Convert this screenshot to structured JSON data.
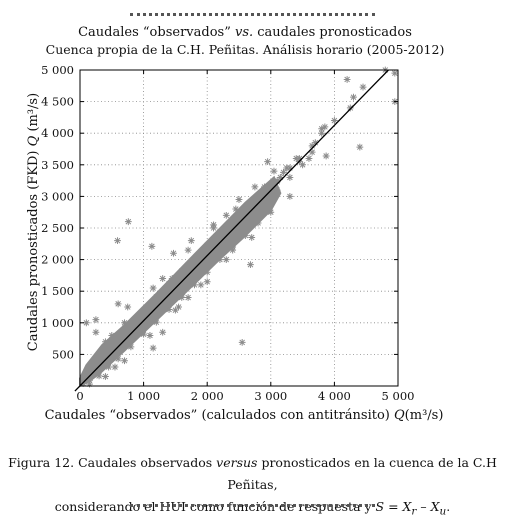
{
  "chart_data": {
    "type": "scatter",
    "title": "Caudales “observados” vs. caudales pronosticados",
    "title_italic_part": "vs.",
    "subtitle": "Cuenca propia de la C.H. Peñitas. Análisis horario (2005-2012)",
    "xlabel": "Caudales “observados” (calculados con antitránsito) Q(m³/s)",
    "ylabel": "Caudales pronosticados (FKD) Q (m³/s)",
    "xlim": [
      0,
      5000
    ],
    "ylim": [
      0,
      5000
    ],
    "x_ticks": [
      0,
      1000,
      2000,
      3000,
      4000,
      5000
    ],
    "x_tick_labels": [
      "0",
      "1 000",
      "2 000",
      "3 000",
      "4 000",
      "5 000"
    ],
    "y_ticks": [
      500,
      1000,
      1500,
      2000,
      2500,
      3000,
      3500,
      4000,
      4500,
      5000
    ],
    "y_tick_labels": [
      "500",
      "1 000",
      "1 500",
      "2 000",
      "2 500",
      "3 000",
      "3 500",
      "4 000",
      "4 500",
      "5 000"
    ],
    "grid": true,
    "marker": "asterisk",
    "marker_color": "#8c8c8c",
    "reference_line": {
      "name": "1:1",
      "x": [
        -80,
        4850
      ],
      "y": [
        -80,
        5000
      ],
      "color": "#000000"
    },
    "series": [
      {
        "points": [
          [
            50,
            40
          ],
          [
            100,
            120
          ],
          [
            150,
            90
          ],
          [
            200,
            210
          ],
          [
            250,
            230
          ],
          [
            300,
            280
          ],
          [
            350,
            330
          ],
          [
            400,
            390
          ],
          [
            450,
            430
          ],
          [
            500,
            510
          ],
          [
            550,
            540
          ],
          [
            600,
            600
          ],
          [
            650,
            660
          ],
          [
            700,
            720
          ],
          [
            750,
            790
          ],
          [
            800,
            840
          ],
          [
            850,
            900
          ],
          [
            900,
            950
          ],
          [
            950,
            1000
          ],
          [
            1000,
            1060
          ],
          [
            1050,
            1110
          ],
          [
            1100,
            1160
          ],
          [
            1150,
            1220
          ],
          [
            1200,
            1270
          ],
          [
            1250,
            1320
          ],
          [
            1300,
            1380
          ],
          [
            1350,
            1420
          ],
          [
            1400,
            1470
          ],
          [
            1450,
            1520
          ],
          [
            1500,
            1580
          ],
          [
            1550,
            1630
          ],
          [
            1600,
            1680
          ],
          [
            1650,
            1740
          ],
          [
            1700,
            1790
          ],
          [
            1750,
            1840
          ],
          [
            1800,
            1900
          ],
          [
            1850,
            1950
          ],
          [
            1900,
            2000
          ],
          [
            1950,
            2060
          ],
          [
            2000,
            2110
          ],
          [
            2050,
            2160
          ],
          [
            2100,
            2200
          ],
          [
            2150,
            2260
          ],
          [
            2200,
            2320
          ],
          [
            2250,
            2370
          ],
          [
            2300,
            2420
          ],
          [
            2350,
            2470
          ],
          [
            2400,
            2520
          ],
          [
            2450,
            2570
          ],
          [
            2500,
            2630
          ],
          [
            2550,
            2680
          ],
          [
            2600,
            2730
          ],
          [
            2650,
            2780
          ],
          [
            2700,
            2840
          ],
          [
            2750,
            2900
          ],
          [
            2800,
            2950
          ],
          [
            2850,
            3000
          ],
          [
            2900,
            3050
          ],
          [
            3000,
            3120
          ],
          [
            3100,
            3230
          ],
          [
            150,
            230
          ],
          [
            300,
            420
          ],
          [
            450,
            600
          ],
          [
            600,
            760
          ],
          [
            800,
            950
          ],
          [
            1000,
            1200
          ],
          [
            1200,
            1410
          ],
          [
            1400,
            1620
          ],
          [
            1600,
            1820
          ],
          [
            1800,
            2020
          ],
          [
            2000,
            2230
          ],
          [
            2200,
            2440
          ],
          [
            2400,
            2620
          ],
          [
            2600,
            2820
          ],
          [
            150,
            30
          ],
          [
            300,
            160
          ],
          [
            450,
            300
          ],
          [
            600,
            430
          ],
          [
            800,
            620
          ],
          [
            1000,
            820
          ],
          [
            1200,
            1010
          ],
          [
            1400,
            1210
          ],
          [
            1600,
            1400
          ],
          [
            1800,
            1600
          ],
          [
            2000,
            1800
          ],
          [
            2200,
            2000
          ],
          [
            2400,
            2200
          ],
          [
            2600,
            2380
          ],
          [
            2800,
            2580
          ],
          [
            400,
            150
          ],
          [
            700,
            400
          ],
          [
            1100,
            800
          ],
          [
            1500,
            1200
          ],
          [
            1900,
            1600
          ],
          [
            2300,
            2000
          ],
          [
            2700,
            2350
          ],
          [
            400,
            700
          ],
          [
            700,
            1000
          ],
          [
            1300,
            1700
          ],
          [
            1700,
            2150
          ],
          [
            2100,
            2500
          ],
          [
            2500,
            2950
          ],
          [
            100,
            1000
          ],
          [
            250,
            850
          ],
          [
            550,
            300
          ],
          [
            1150,
            600
          ],
          [
            1300,
            850
          ],
          [
            1700,
            1400
          ],
          [
            2000,
            1650
          ],
          [
            750,
            1250
          ],
          [
            1150,
            1550
          ],
          [
            1450,
            1700
          ],
          [
            1750,
            2300
          ],
          [
            2100,
            2550
          ],
          [
            2300,
            2700
          ],
          [
            2450,
            2800
          ],
          [
            1550,
            1250
          ],
          [
            3100,
            3100
          ],
          [
            3200,
            3380
          ],
          [
            3300,
            3450
          ],
          [
            3450,
            3550
          ],
          [
            3650,
            3800
          ],
          [
            3800,
            4000
          ],
          [
            3850,
            4100
          ],
          [
            3000,
            2950
          ],
          [
            3450,
            3600
          ],
          [
            3500,
            3500
          ],
          [
            3650,
            3700
          ],
          [
            3700,
            3850
          ],
          [
            2900,
            3150
          ],
          [
            3100,
            3250
          ],
          [
            3300,
            3300
          ],
          [
            500,
            800
          ],
          [
            250,
            1050
          ],
          [
            600,
            1300
          ],
          [
            1400,
            1300
          ],
          [
            1600,
            1450
          ],
          [
            1800,
            1700
          ],
          [
            2400,
            2150
          ],
          [
            2700,
            2600
          ],
          [
            3050,
            3400
          ],
          [
            2750,
            3150
          ],
          [
            3400,
            3600
          ],
          [
            2950,
            3550
          ],
          [
            3800,
            4070
          ],
          [
            4250,
            4400
          ],
          [
            4300,
            4570
          ],
          [
            4450,
            4730
          ],
          [
            4800,
            5000
          ],
          [
            4950,
            4950
          ],
          [
            4950,
            4500
          ],
          [
            4200,
            4850
          ],
          [
            4000,
            4200
          ],
          [
            760,
            2600
          ],
          [
            1470,
            2100
          ],
          [
            1130,
            2210
          ],
          [
            590,
            2300
          ],
          [
            2680,
            1920
          ],
          [
            3000,
            2750
          ],
          [
            2550,
            690
          ],
          [
            4400,
            3780
          ],
          [
            3870,
            3640
          ],
          [
            3300,
            3000
          ],
          [
            3600,
            3600
          ],
          [
            2850,
            2850
          ],
          [
            3150,
            3300
          ],
          [
            3250,
            3450
          ]
        ]
      }
    ]
  },
  "caption": {
    "line1_before": "Figura 12. Caudales observados ",
    "line1_italic": "versus",
    "line1_after": " pronosticados en la cuenca de la C.H Peñitas,",
    "line2_before": "considerando el HUI  como función de respuesta y ",
    "line2_formula": "S = X",
    "line2_sub_r": "r",
    "line2_minus": " – X",
    "line2_sub_u": "u",
    "line2_end": "."
  }
}
